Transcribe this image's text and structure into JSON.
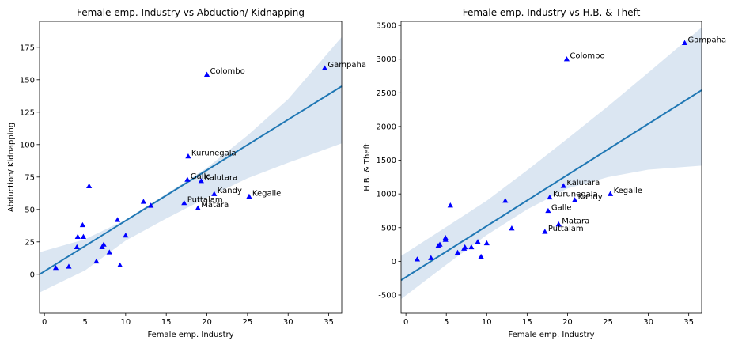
{
  "chart_data": [
    {
      "type": "scatter",
      "title": "Female emp. Industry vs Abduction/ Kidnapping",
      "xlabel": "Female emp. Industry",
      "ylabel": "Abduction/ Kidnapping",
      "xlim": [
        -0.6,
        36.6
      ],
      "ylim": [
        -30,
        195
      ],
      "xticks": [
        0,
        5,
        10,
        15,
        20,
        25,
        30,
        35
      ],
      "yticks": [
        0,
        25,
        50,
        75,
        100,
        125,
        150,
        175
      ],
      "marker_color": "#0000ff",
      "line_color": "#1f77b4",
      "band_color": "#dbe6f2",
      "regression": {
        "x": [
          -0.6,
          36.6
        ],
        "y": [
          0,
          145
        ]
      },
      "confidence_band": {
        "x": [
          -0.6,
          5,
          10,
          15,
          20,
          25,
          30,
          36.6
        ],
        "upper": [
          17,
          27,
          42,
          62,
          82,
          107,
          135,
          183
        ],
        "lower": [
          -14,
          3,
          26,
          43,
          59,
          74,
          86,
          101
        ]
      },
      "points": [
        {
          "x": 1.4,
          "y": 5,
          "label": ""
        },
        {
          "x": 3.0,
          "y": 6,
          "label": ""
        },
        {
          "x": 4.0,
          "y": 21,
          "label": ""
        },
        {
          "x": 4.1,
          "y": 29,
          "label": ""
        },
        {
          "x": 4.7,
          "y": 38,
          "label": ""
        },
        {
          "x": 4.8,
          "y": 29,
          "label": ""
        },
        {
          "x": 5.5,
          "y": 68,
          "label": ""
        },
        {
          "x": 6.4,
          "y": 10,
          "label": ""
        },
        {
          "x": 7.1,
          "y": 21,
          "label": ""
        },
        {
          "x": 7.3,
          "y": 23,
          "label": ""
        },
        {
          "x": 8.0,
          "y": 17,
          "label": ""
        },
        {
          "x": 9.0,
          "y": 42,
          "label": ""
        },
        {
          "x": 9.3,
          "y": 7,
          "label": ""
        },
        {
          "x": 10.0,
          "y": 30,
          "label": ""
        },
        {
          "x": 12.2,
          "y": 56,
          "label": ""
        },
        {
          "x": 13.1,
          "y": 53,
          "label": ""
        },
        {
          "x": 17.2,
          "y": 55,
          "label": "Puttalam"
        },
        {
          "x": 17.6,
          "y": 73,
          "label": "Galle"
        },
        {
          "x": 17.7,
          "y": 91,
          "label": "Kurunegala"
        },
        {
          "x": 18.9,
          "y": 51,
          "label": "Matara"
        },
        {
          "x": 19.3,
          "y": 72,
          "label": "Kalutara"
        },
        {
          "x": 20.0,
          "y": 154,
          "label": "Colombo"
        },
        {
          "x": 20.9,
          "y": 62,
          "label": "Kandy"
        },
        {
          "x": 25.2,
          "y": 60,
          "label": "Kegalle"
        },
        {
          "x": 34.5,
          "y": 159,
          "label": "Gampaha"
        }
      ]
    },
    {
      "type": "scatter",
      "title": "Female emp. Industry vs H.B. & Theft",
      "xlabel": "Female emp. Industry",
      "ylabel": "H.B. & Theft",
      "xlim": [
        -0.6,
        36.6
      ],
      "ylim": [
        -770,
        3560
      ],
      "xticks": [
        0,
        5,
        10,
        15,
        20,
        25,
        30,
        35
      ],
      "yticks": [
        -500,
        0,
        500,
        1000,
        1500,
        2000,
        2500,
        3000,
        3500
      ],
      "marker_color": "#0000ff",
      "line_color": "#1f77b4",
      "band_color": "#dbe6f2",
      "regression": {
        "x": [
          -0.6,
          36.6
        ],
        "y": [
          -280,
          2540
        ]
      },
      "confidence_band": {
        "x": [
          -0.6,
          5,
          10,
          15,
          20,
          25,
          30,
          36.6
        ],
        "upper": [
          80,
          510,
          900,
          1350,
          1820,
          2300,
          2800,
          3470
        ],
        "lower": [
          -560,
          -50,
          390,
          770,
          1080,
          1250,
          1360,
          1420
        ]
      },
      "points": [
        {
          "x": 1.4,
          "y": 30,
          "label": ""
        },
        {
          "x": 3.1,
          "y": 50,
          "label": ""
        },
        {
          "x": 4.0,
          "y": 230,
          "label": ""
        },
        {
          "x": 4.2,
          "y": 250,
          "label": ""
        },
        {
          "x": 4.9,
          "y": 320,
          "label": ""
        },
        {
          "x": 4.9,
          "y": 350,
          "label": ""
        },
        {
          "x": 5.5,
          "y": 830,
          "label": ""
        },
        {
          "x": 6.4,
          "y": 130,
          "label": ""
        },
        {
          "x": 7.2,
          "y": 190,
          "label": ""
        },
        {
          "x": 7.3,
          "y": 210,
          "label": ""
        },
        {
          "x": 8.1,
          "y": 210,
          "label": ""
        },
        {
          "x": 8.9,
          "y": 290,
          "label": ""
        },
        {
          "x": 9.3,
          "y": 70,
          "label": ""
        },
        {
          "x": 10.0,
          "y": 270,
          "label": ""
        },
        {
          "x": 12.3,
          "y": 900,
          "label": ""
        },
        {
          "x": 13.1,
          "y": 490,
          "label": ""
        },
        {
          "x": 17.2,
          "y": 440,
          "label": "Puttalam"
        },
        {
          "x": 17.6,
          "y": 750,
          "label": "Galle"
        },
        {
          "x": 17.8,
          "y": 950,
          "label": "Kurunegala"
        },
        {
          "x": 18.9,
          "y": 550,
          "label": "Matara"
        },
        {
          "x": 19.5,
          "y": 1120,
          "label": "Kalutara"
        },
        {
          "x": 19.9,
          "y": 3000,
          "label": "Colombo"
        },
        {
          "x": 20.9,
          "y": 910,
          "label": "Kandy"
        },
        {
          "x": 25.3,
          "y": 1000,
          "label": "Kegalle"
        },
        {
          "x": 34.5,
          "y": 3240,
          "label": "Gampaha"
        }
      ]
    }
  ]
}
